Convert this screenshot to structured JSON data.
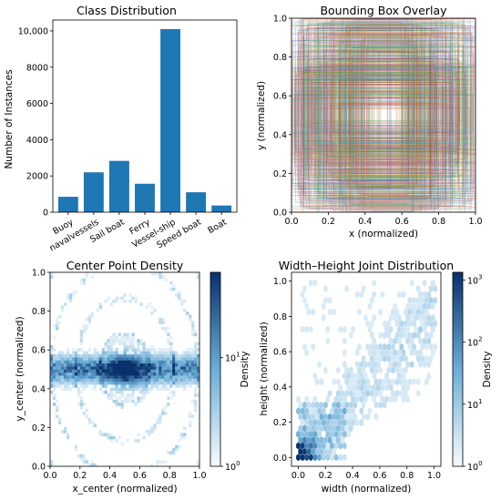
{
  "colors": {
    "bar": "#1f77b4",
    "blues_light": "#f7fbff",
    "blues_mid": "#6baed6",
    "blues_dark": "#08306b",
    "overlay_palette": [
      "#1f77b4",
      "#ff7f0e",
      "#2ca02c",
      "#d62728",
      "#9467bd",
      "#8c564b",
      "#e377c2",
      "#7f7f7f",
      "#bcbd22",
      "#17becf"
    ]
  },
  "chart_data": [
    {
      "type": "bar",
      "title": "Class Distribution",
      "xlabel": "",
      "ylabel": "Number of Instances",
      "categories": [
        "Buoy",
        "navalvessels",
        "Sail boat",
        "Ferry",
        "Vessel-ship",
        "Speed boat",
        "Boat"
      ],
      "values": [
        850,
        2200,
        2830,
        1570,
        10100,
        1100,
        370
      ],
      "ylim": [
        0,
        10600
      ],
      "yticks": [
        0,
        2000,
        4000,
        6000,
        8000,
        10000
      ],
      "ytick_labels": [
        "0",
        "2000",
        "4000",
        "6000",
        "8000",
        "10,000"
      ],
      "grid": false
    },
    {
      "type": "scatter",
      "title": "Bounding Box Overlay",
      "xlabel": "x (normalized)",
      "ylabel": "y (normalized)",
      "xlim": [
        0,
        1
      ],
      "ylim": [
        0,
        1
      ],
      "xticks": [
        "0.0",
        "0.2",
        "0.4",
        "0.6",
        "0.8",
        "1.0"
      ],
      "yticks": [
        "0.0",
        "0.2",
        "0.4",
        "0.6",
        "0.8",
        "1.0"
      ],
      "grid": false
    },
    {
      "type": "heatmap",
      "title": "Center Point Density",
      "xlabel": "x_center (normalized)",
      "ylabel": "y_center (normalized)",
      "xlim": [
        0,
        1
      ],
      "ylim": [
        0,
        1
      ],
      "xticks": [
        "0.0",
        "0.2",
        "0.4",
        "0.6",
        "0.8",
        "1.0"
      ],
      "yticks": [
        "0.0",
        "0.2",
        "0.4",
        "0.6",
        "0.8",
        "1.0"
      ],
      "colorbar_label": "Density",
      "colorbar_scale": "log",
      "colorbar_ticks": [
        "10",
        "10"
      ],
      "colorbar_tick_exponents": [
        "0",
        "1"
      ],
      "grid": false
    },
    {
      "type": "heatmap",
      "title": "Width–Height Joint Distribution",
      "xlabel": "width (normalized)",
      "ylabel": "height (normalized)",
      "xlim": [
        -0.05,
        1.05
      ],
      "ylim": [
        -0.05,
        1.05
      ],
      "xticks": [
        "0.0",
        "0.2",
        "0.4",
        "0.6",
        "0.8",
        "1.0"
      ],
      "yticks": [
        "0.0",
        "0.2",
        "0.4",
        "0.6",
        "0.8",
        "1.0"
      ],
      "colorbar_label": "Density",
      "colorbar_scale": "log",
      "colorbar_ticks": [
        "10",
        "10",
        "10",
        "10"
      ],
      "colorbar_tick_exponents": [
        "0",
        "1",
        "2",
        "3"
      ],
      "grid": false
    }
  ]
}
